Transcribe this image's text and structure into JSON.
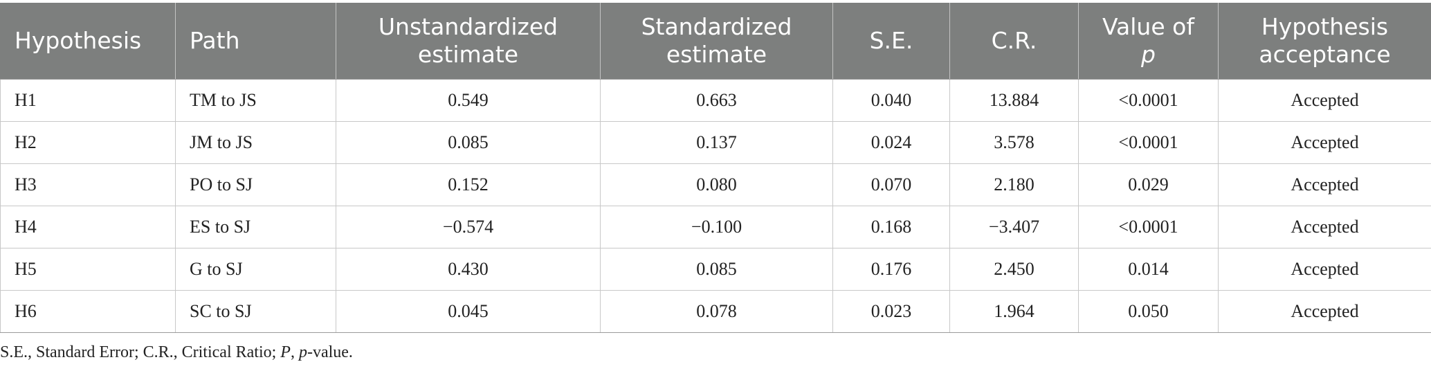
{
  "table": {
    "columns": [
      {
        "label": "Hypothesis",
        "align": "left"
      },
      {
        "label": "Path",
        "align": "left"
      },
      {
        "label": "Unstandardized estimate",
        "align": "center"
      },
      {
        "label": "Standardized estimate",
        "align": "center"
      },
      {
        "label": "S.E.",
        "align": "center"
      },
      {
        "label": "C.R.",
        "align": "center"
      },
      {
        "label_prefix": "Value of",
        "label_italic": "p",
        "align": "center"
      },
      {
        "label": "Hypothesis acceptance",
        "align": "center"
      }
    ],
    "rows": [
      [
        "H1",
        "TM to JS",
        "0.549",
        "0.663",
        "0.040",
        "13.884",
        "<0.0001",
        "Accepted"
      ],
      [
        "H2",
        "JM to JS",
        "0.085",
        "0.137",
        "0.024",
        "3.578",
        "<0.0001",
        "Accepted"
      ],
      [
        "H3",
        "PO to SJ",
        "0.152",
        "0.080",
        "0.070",
        "2.180",
        "0.029",
        "Accepted"
      ],
      [
        "H4",
        "ES to SJ",
        "−0.574",
        "−0.100",
        "0.168",
        "−3.407",
        "<0.0001",
        "Accepted"
      ],
      [
        "H5",
        "G to SJ",
        "0.430",
        "0.085",
        "0.176",
        "2.450",
        "0.014",
        "Accepted"
      ],
      [
        "H6",
        "SC to SJ",
        "0.045",
        "0.078",
        "0.023",
        "1.964",
        "0.050",
        "Accepted"
      ]
    ]
  },
  "footnote": {
    "part1": "S.E., Standard Error; C.R., Critical Ratio; ",
    "p_upper": "P",
    "part2": ", ",
    "p_lower": "p",
    "part3": "-value."
  }
}
